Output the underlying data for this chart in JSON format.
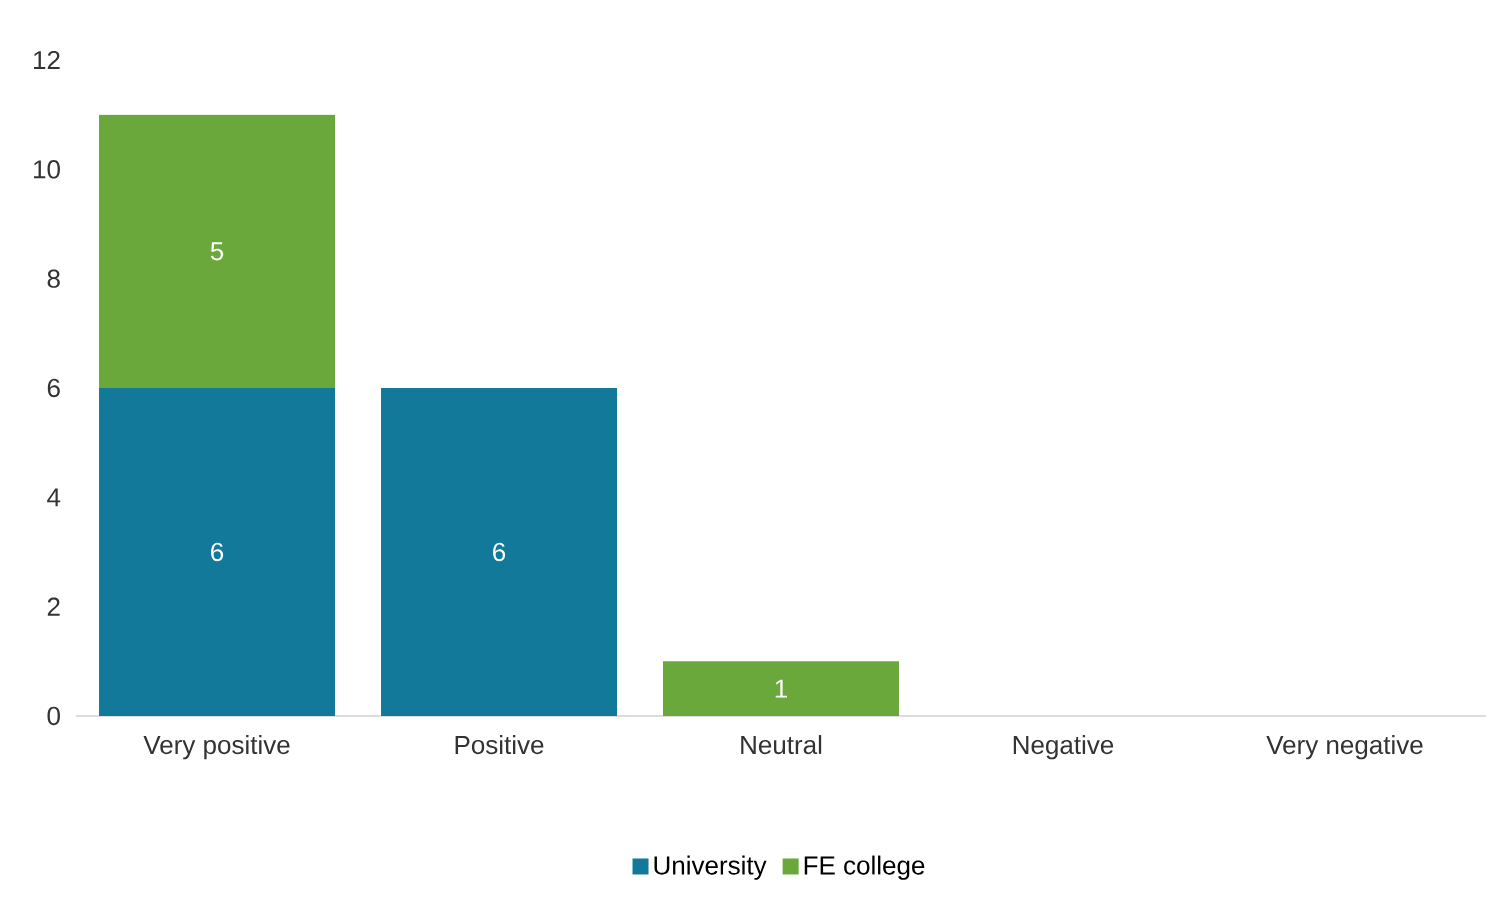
{
  "chart_data": {
    "type": "bar",
    "stacked": true,
    "categories": [
      "Very positive",
      "Positive",
      "Neutral",
      "Negative",
      "Very negative"
    ],
    "series": [
      {
        "name": "University",
        "color": "#13799b",
        "values": [
          6,
          6,
          0,
          0,
          0
        ],
        "value_labels": [
          "6",
          "6",
          null,
          null,
          null
        ]
      },
      {
        "name": "FE college",
        "color": "#6aa83c",
        "values": [
          5,
          0,
          1,
          0,
          0
        ],
        "value_labels": [
          "5",
          null,
          "1",
          null,
          null
        ]
      }
    ],
    "ylim": [
      0,
      12
    ],
    "yticks": [
      0,
      2,
      4,
      6,
      8,
      10,
      12
    ],
    "grid": false,
    "legend": "bottom"
  }
}
